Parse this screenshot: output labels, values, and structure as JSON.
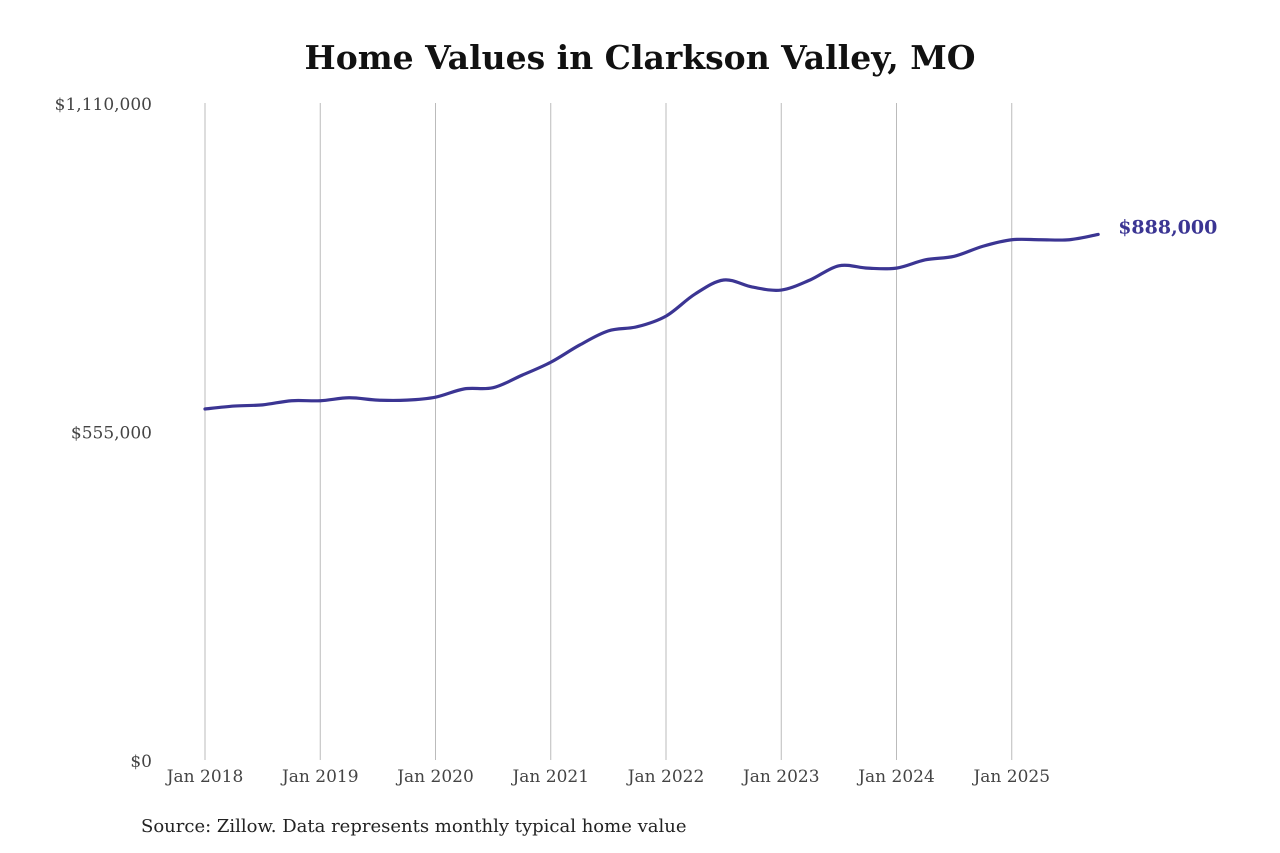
{
  "chart_data": {
    "type": "line",
    "title": "Home Values in Clarkson Valley, MO",
    "source": "Source: Zillow. Data represents monthly typical home value",
    "xlabel": "",
    "ylabel": "",
    "ylim": [
      0,
      1110000
    ],
    "y_ticks": [
      {
        "value": 0,
        "label": "$0"
      },
      {
        "value": 555000,
        "label": "$555,000"
      },
      {
        "value": 1110000,
        "label": "$1,110,000"
      }
    ],
    "x_ticks": [
      "Jan 2018",
      "Jan 2019",
      "Jan 2020",
      "Jan 2021",
      "Jan 2022",
      "Jan 2023",
      "Jan 2024",
      "Jan 2025"
    ],
    "grid": "vertical lines at x ticks",
    "color": "#3b3593",
    "end_label": "$888,000",
    "series": [
      {
        "x": [
          "2018-01",
          "2018-04",
          "2018-07",
          "2018-10",
          "2019-01",
          "2019-04",
          "2019-07",
          "2019-10",
          "2020-01",
          "2020-04",
          "2020-07",
          "2020-10",
          "2021-01",
          "2021-04",
          "2021-07",
          "2021-10",
          "2022-01",
          "2022-04",
          "2022-07",
          "2022-10",
          "2023-01",
          "2023-04",
          "2023-07",
          "2023-10",
          "2024-01",
          "2024-04",
          "2024-07",
          "2024-10",
          "2025-01",
          "2025-04",
          "2025-07",
          "2025-10"
        ],
        "values": [
          593000,
          598000,
          600000,
          607000,
          607000,
          612000,
          608000,
          608000,
          613000,
          627000,
          629000,
          650000,
          672000,
          701000,
          725000,
          732000,
          750000,
          787000,
          811000,
          799000,
          794000,
          811000,
          835000,
          831000,
          831000,
          845000,
          851000,
          868000,
          879000,
          879000,
          879000,
          888000
        ]
      }
    ]
  }
}
